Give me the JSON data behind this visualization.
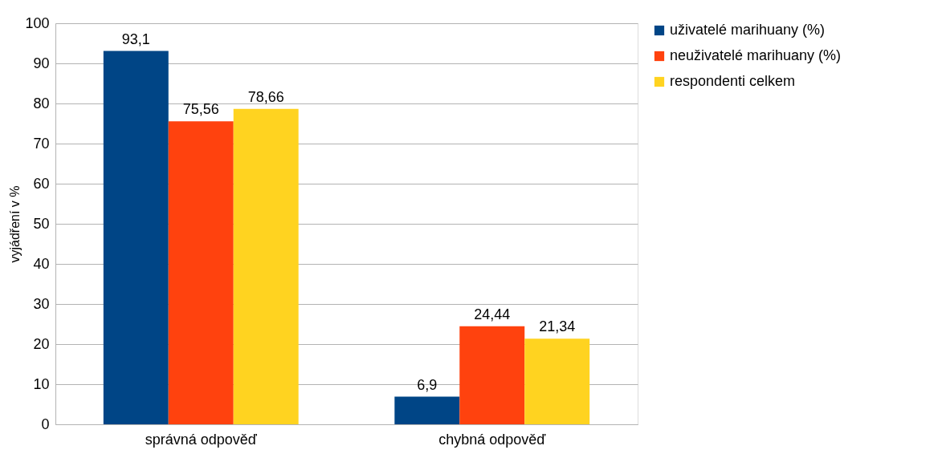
{
  "chart_data": {
    "type": "bar",
    "ylabel": "vyjádření v %",
    "categories": [
      "správná odpověď",
      "chybná odpověď"
    ],
    "series": [
      {
        "name": "uživatelé marihuany (%)",
        "color": "#004586",
        "values": [
          93.1,
          6.9
        ],
        "value_labels": [
          "93,1",
          "6,9"
        ]
      },
      {
        "name": "neuživatelé marihuany (%)",
        "color": "#ff420e",
        "values": [
          75.56,
          24.44
        ],
        "value_labels": [
          "75,56",
          "24,44"
        ]
      },
      {
        "name": "respondenti celkem",
        "color": "#ffd320",
        "values": [
          78.66,
          21.34
        ],
        "value_labels": [
          "78,66",
          "21,34"
        ]
      }
    ],
    "ylim": [
      0,
      100
    ],
    "yticks": [
      0,
      10,
      20,
      30,
      40,
      50,
      60,
      70,
      80,
      90,
      100
    ],
    "grid": "y",
    "legend": "right"
  }
}
